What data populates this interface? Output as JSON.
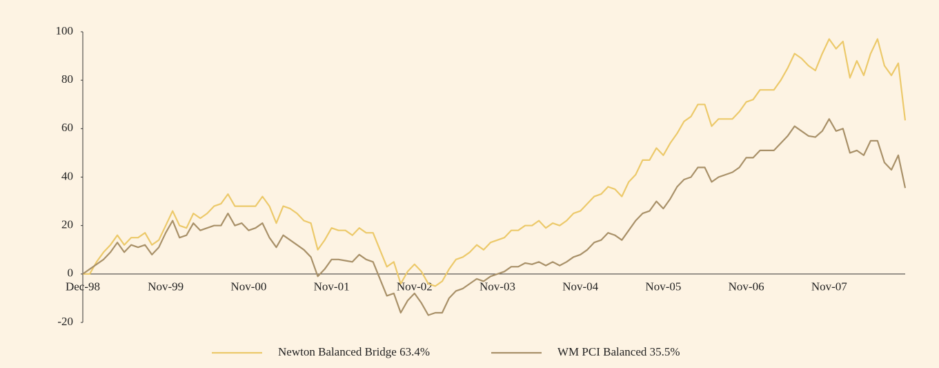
{
  "chart_data": {
    "type": "line",
    "categories": [
      "Dec-98",
      null,
      null,
      null,
      null,
      null,
      null,
      null,
      null,
      null,
      null,
      null,
      "Nov-99",
      null,
      null,
      null,
      null,
      null,
      null,
      null,
      null,
      null,
      null,
      null,
      "Nov-00",
      null,
      null,
      null,
      null,
      null,
      null,
      null,
      null,
      null,
      null,
      null,
      "Nov-01",
      null,
      null,
      null,
      null,
      null,
      null,
      null,
      null,
      null,
      null,
      null,
      "Nov-02",
      null,
      null,
      null,
      null,
      null,
      null,
      null,
      null,
      null,
      null,
      null,
      "Nov-03",
      null,
      null,
      null,
      null,
      null,
      null,
      null,
      null,
      null,
      null,
      null,
      "Nov-04",
      null,
      null,
      null,
      null,
      null,
      null,
      null,
      null,
      null,
      null,
      null,
      "Nov-05",
      null,
      null,
      null,
      null,
      null,
      null,
      null,
      null,
      null,
      null,
      null,
      "Nov-06",
      null,
      null,
      null,
      null,
      null,
      null,
      null,
      null,
      null,
      null,
      null,
      "Nov-07",
      null,
      null,
      null,
      null,
      null,
      null,
      null,
      null,
      null,
      null,
      null
    ],
    "series": [
      {
        "name": "Newton Balanced Bridge 63.4%",
        "color": "#ecc96a",
        "values": [
          0,
          0,
          5,
          9,
          12,
          16,
          12,
          15,
          15,
          17,
          12,
          14,
          20,
          26,
          20,
          19,
          25,
          23,
          25,
          28,
          29,
          33,
          28,
          28,
          28,
          28,
          32,
          28,
          21,
          28,
          27,
          25,
          22,
          21,
          10,
          14,
          19,
          18,
          18,
          16,
          19,
          17,
          17,
          10,
          3,
          5,
          -4,
          1,
          4,
          1,
          -4,
          -5,
          -3,
          2,
          6,
          7,
          9,
          12,
          10,
          13,
          14,
          15,
          18,
          18,
          20,
          20,
          22,
          19,
          21,
          20,
          22,
          25,
          26,
          29,
          32,
          33,
          36,
          35,
          32,
          38,
          41,
          47,
          47,
          52,
          49,
          54,
          58,
          63,
          65,
          70,
          70,
          61,
          64,
          64,
          64,
          67,
          71,
          72,
          76,
          76,
          76,
          80,
          85,
          91,
          89,
          86,
          84,
          91,
          97,
          93,
          96,
          81,
          88,
          82,
          91,
          97,
          86,
          82,
          87,
          63.4
        ]
      },
      {
        "name": "WM PCI Balanced 35.5%",
        "color": "#a89068",
        "values": [
          0,
          2,
          4,
          6,
          9,
          13,
          9,
          12,
          11,
          12,
          8,
          11,
          17,
          22,
          15,
          16,
          21,
          18,
          19,
          20,
          20,
          25,
          20,
          21,
          18,
          19,
          21,
          15,
          11,
          16,
          14,
          12,
          10,
          7,
          -1,
          2,
          6,
          6,
          5.5,
          5,
          8,
          6,
          5,
          -2,
          -9,
          -8,
          -16,
          -11,
          -8,
          -12,
          -17,
          -16,
          -16,
          -10,
          -7,
          -6,
          -4,
          -2,
          -3,
          -1,
          0,
          1,
          3,
          3,
          4.5,
          4,
          5,
          3.5,
          5,
          3.5,
          5,
          7,
          8,
          10,
          13,
          14,
          17,
          16,
          14,
          18,
          22,
          25,
          26,
          30,
          27,
          31,
          36,
          39,
          40,
          44,
          44,
          38,
          40,
          41,
          42,
          44,
          48,
          48,
          51,
          51,
          51,
          54,
          57,
          61,
          59,
          57,
          56.5,
          59,
          64,
          59,
          60,
          50,
          51,
          49,
          55,
          55,
          46,
          43,
          49,
          35.5
        ]
      }
    ],
    "ylim": [
      -20,
      100
    ],
    "yticks": [
      -20,
      0,
      20,
      40,
      60,
      80,
      100
    ],
    "grid": false,
    "legend": "bottom"
  }
}
